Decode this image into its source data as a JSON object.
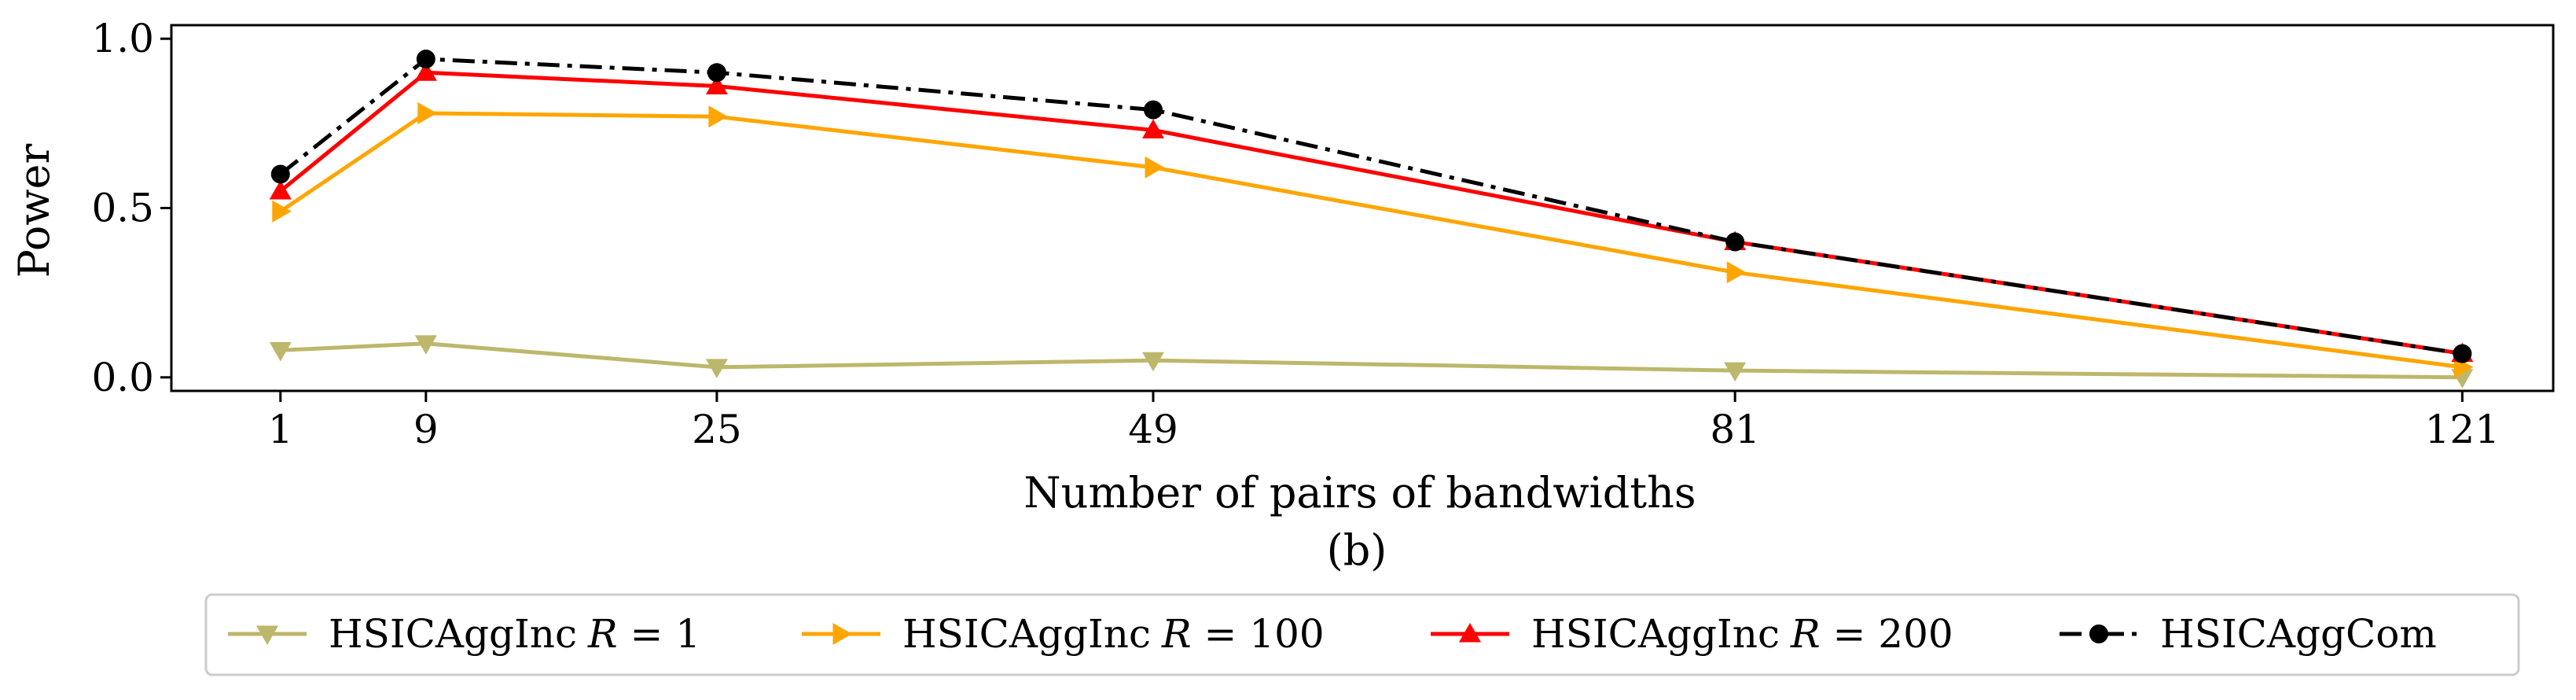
{
  "chart_data": {
    "type": "line",
    "title": "",
    "xlabel": "Number of pairs of bandwidths",
    "ylabel": "Power",
    "caption": "(b)",
    "x": [
      1,
      9,
      25,
      49,
      81,
      121
    ],
    "x_ticks": [
      1,
      9,
      25,
      49,
      81,
      121
    ],
    "xlim": [
      -5,
      126
    ],
    "ylim": [
      -0.04,
      1.04
    ],
    "y_ticks": [
      0.0,
      0.5,
      1.0
    ],
    "y_tick_labels": [
      "0.0",
      "0.5",
      "1.0"
    ],
    "grid": false,
    "legend_position": "bottom-outside",
    "series": [
      {
        "name": "HSICAggInc",
        "legend_suffix": "R = 1",
        "color": "#bdb76b",
        "marker": "triangle-down",
        "dash": "solid",
        "values": [
          0.08,
          0.1,
          0.03,
          0.05,
          0.02,
          0.0
        ]
      },
      {
        "name": "HSICAggInc",
        "legend_suffix": "R = 100",
        "color": "#ffa500",
        "marker": "triangle-right",
        "dash": "solid",
        "values": [
          0.49,
          0.78,
          0.77,
          0.62,
          0.31,
          0.03
        ]
      },
      {
        "name": "HSICAggInc",
        "legend_suffix": "R = 200",
        "color": "#ff0000",
        "marker": "triangle-up",
        "dash": "solid",
        "values": [
          0.55,
          0.9,
          0.86,
          0.73,
          0.4,
          0.07
        ]
      },
      {
        "name": "HSICAggCom",
        "legend_suffix": "",
        "color": "#000000",
        "marker": "circle",
        "dash": "dashdot",
        "values": [
          0.6,
          0.94,
          0.9,
          0.79,
          0.4,
          0.07
        ]
      }
    ]
  }
}
